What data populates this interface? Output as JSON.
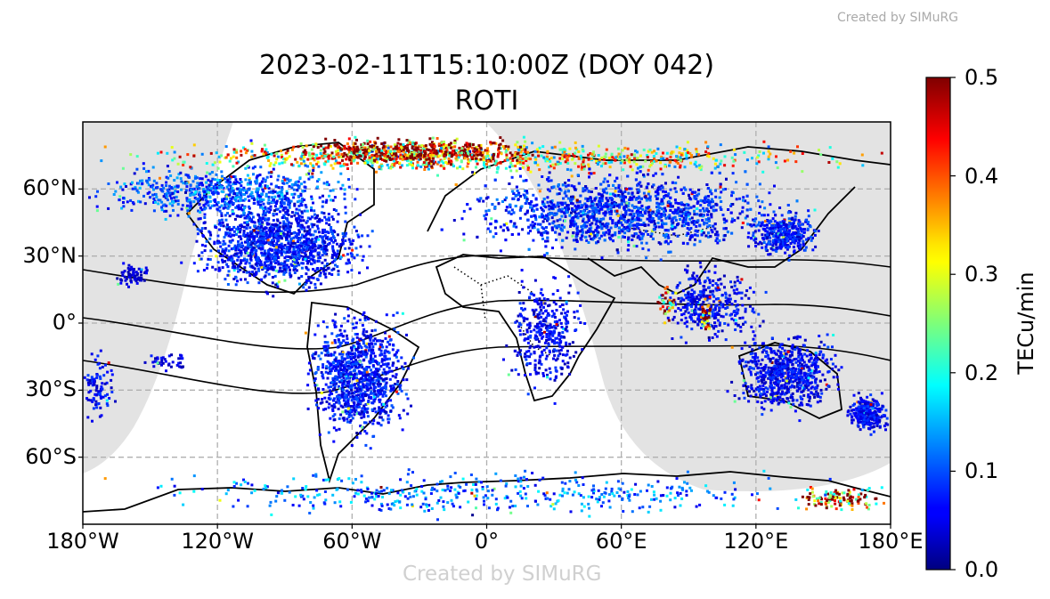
{
  "credit_top": "Created by SIMuRG",
  "credit_bottom": "Created by SIMuRG",
  "chart_data": {
    "type": "scatter",
    "title": [
      "2023-02-11T15:10:00Z (DOY 042)",
      "ROTI"
    ],
    "projection": "PlateCarree",
    "xlim": [
      -180,
      180
    ],
    "ylim": [
      -90,
      90
    ],
    "x_ticks": [
      {
        "v": -180,
        "label": "180°W"
      },
      {
        "v": -120,
        "label": "120°W"
      },
      {
        "v": -60,
        "label": "60°W"
      },
      {
        "v": 0,
        "label": "0°"
      },
      {
        "v": 60,
        "label": "60°E"
      },
      {
        "v": 120,
        "label": "120°E"
      },
      {
        "v": 180,
        "label": "180°E"
      }
    ],
    "y_ticks": [
      {
        "v": 60,
        "label": "60°N"
      },
      {
        "v": 30,
        "label": "30°N"
      },
      {
        "v": 0,
        "label": "0°"
      },
      {
        "v": -30,
        "label": "30°S"
      },
      {
        "v": -60,
        "label": "60°S"
      }
    ],
    "grid": true,
    "colorbar": {
      "label": "TECu/min",
      "range": [
        0,
        0.5
      ],
      "colormap": "jet",
      "ticks": [
        "0.0",
        "0.1",
        "0.2",
        "0.3",
        "0.4",
        "0.5"
      ]
    },
    "colors": {
      "night_shade": "#e3e3e3",
      "grid": "#b0b0b0",
      "coast": "#000000"
    },
    "clusters": [
      {
        "name": "north-america",
        "lon": [
          -135,
          -50
        ],
        "lat": [
          13,
          58
        ],
        "n": 1300,
        "roti": 0.07
      },
      {
        "name": "canada-alaska",
        "lon": [
          -180,
          -50
        ],
        "lat": [
          45,
          72
        ],
        "n": 700,
        "roti": 0.1
      },
      {
        "name": "auroral-north",
        "lon": [
          -180,
          180
        ],
        "lat": [
          66,
          82
        ],
        "n": 900,
        "roti": 0.3
      },
      {
        "name": "auroral-siberia",
        "lon": [
          -95,
          30
        ],
        "lat": [
          70,
          84
        ],
        "n": 500,
        "roti": 0.5
      },
      {
        "name": "europe-asia",
        "lon": [
          -18,
          140
        ],
        "lat": [
          29,
          70
        ],
        "n": 2000,
        "roti": 0.08
      },
      {
        "name": "hawaii",
        "lon": [
          -165,
          -150
        ],
        "lat": [
          15,
          27
        ],
        "n": 70,
        "roti": 0.04
      },
      {
        "name": "south-america",
        "lon": [
          -82,
          -32
        ],
        "lat": [
          -55,
          8
        ],
        "n": 1000,
        "roti": 0.07
      },
      {
        "name": "africa",
        "lon": [
          8,
          45
        ],
        "lat": [
          -35,
          25
        ],
        "n": 350,
        "roti": 0.06
      },
      {
        "name": "east-asia",
        "lon": [
          115,
          150
        ],
        "lat": [
          28,
          52
        ],
        "n": 350,
        "roti": 0.07
      },
      {
        "name": "southeast-asia",
        "lon": [
          75,
          125
        ],
        "lat": [
          -10,
          28
        ],
        "n": 350,
        "roti": 0.06
      },
      {
        "name": "india-epb",
        "lon": [
          75,
          85
        ],
        "lat": [
          0,
          17
        ],
        "n": 35,
        "roti": 0.45
      },
      {
        "name": "indonesia-epb",
        "lon": [
          95,
          101
        ],
        "lat": [
          -7,
          13
        ],
        "n": 35,
        "roti": 0.45
      },
      {
        "name": "australia",
        "lon": [
          108,
          160
        ],
        "lat": [
          -43,
          -3
        ],
        "n": 700,
        "roti": 0.06
      },
      {
        "name": "new-zealand",
        "lon": [
          160,
          180
        ],
        "lat": [
          -50,
          -30
        ],
        "n": 280,
        "roti": 0.06
      },
      {
        "name": "pacific-west-edge",
        "lon": [
          -180,
          -165
        ],
        "lat": [
          -45,
          -10
        ],
        "n": 90,
        "roti": 0.06
      },
      {
        "name": "pacific-south",
        "lon": [
          -155,
          -130
        ],
        "lat": [
          -22,
          -12
        ],
        "n": 40,
        "roti": 0.05
      },
      {
        "name": "antarctic-coast",
        "lon": [
          -180,
          180
        ],
        "lat": [
          -88,
          -65
        ],
        "n": 450,
        "roti": 0.12
      },
      {
        "name": "antarctic-auroral",
        "lon": [
          135,
          180
        ],
        "lat": [
          -86,
          -72
        ],
        "n": 120,
        "roti": 0.45
      }
    ]
  }
}
